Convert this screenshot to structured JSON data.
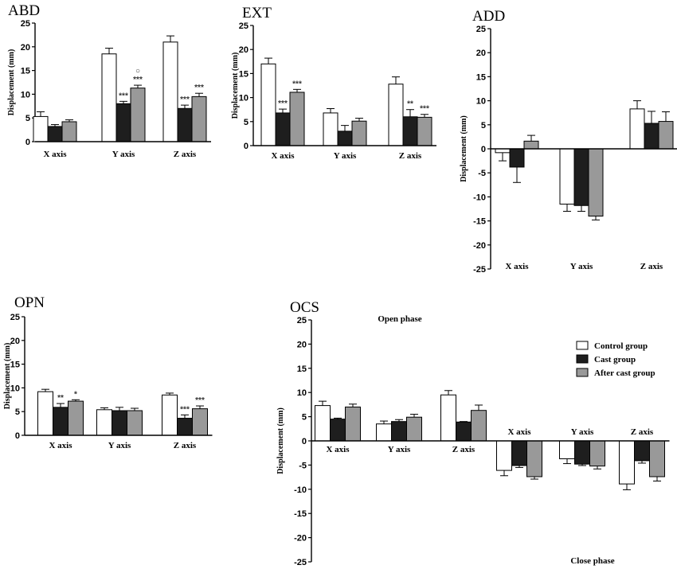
{
  "colors": {
    "control": "#ffffff",
    "cast": "#1e1e1e",
    "after": "#999999",
    "axis": "#000000",
    "sig": "#333333"
  },
  "legend": [
    "Control group",
    "Cast group",
    "After cast group"
  ],
  "chart_data": [
    {
      "id": "ABD",
      "type": "bar",
      "title": "ABD",
      "ylabel": "Displacement (mm)",
      "ylim": [
        0,
        25
      ],
      "ticks": [
        0,
        5,
        10,
        15,
        20,
        25
      ],
      "categories": [
        "X axis",
        "Y axis",
        "Z axis"
      ],
      "series": [
        {
          "name": "Control group",
          "values": [
            5.3,
            18.5,
            21.0
          ],
          "errors": [
            1.0,
            1.2,
            1.3
          ]
        },
        {
          "name": "Cast group",
          "values": [
            3.2,
            8.0,
            7.0
          ],
          "errors": [
            0.4,
            0.5,
            0.7
          ]
        },
        {
          "name": "After cast group",
          "values": [
            4.2,
            11.3,
            9.5
          ],
          "errors": [
            0.4,
            0.6,
            0.7
          ]
        }
      ],
      "sig": [
        [
          "",
          "",
          ""
        ],
        [
          "",
          "***",
          "***"
        ],
        [
          "",
          "○\n***",
          "***"
        ]
      ]
    },
    {
      "id": "EXT",
      "type": "bar",
      "title": "EXT",
      "ylabel": "Displacement (mm)",
      "ylim": [
        0,
        25
      ],
      "ticks": [
        0,
        5,
        10,
        15,
        20,
        25
      ],
      "categories": [
        "X axis",
        "Y axis",
        "Z axis"
      ],
      "series": [
        {
          "name": "Control group",
          "values": [
            17.0,
            6.8,
            12.8
          ],
          "errors": [
            1.2,
            0.9,
            1.5
          ]
        },
        {
          "name": "Cast group",
          "values": [
            6.8,
            3.0,
            6.0
          ],
          "errors": [
            0.8,
            1.2,
            1.5
          ]
        },
        {
          "name": "After cast group",
          "values": [
            11.1,
            5.1,
            5.9
          ],
          "errors": [
            0.6,
            0.6,
            0.6
          ]
        }
      ],
      "sig": [
        [
          "",
          "",
          ""
        ],
        [
          "***",
          "",
          "**"
        ],
        [
          "***",
          "",
          "***"
        ]
      ]
    },
    {
      "id": "ADD",
      "type": "bar",
      "title": "ADD",
      "ylabel": "Displacement (mm)",
      "ylim": [
        -25,
        25
      ],
      "ticks": [
        -25,
        -20,
        -15,
        -10,
        -5,
        0,
        5,
        10,
        15,
        20,
        25
      ],
      "categories": [
        "X axis",
        "Y axis",
        "Z axis"
      ],
      "series": [
        {
          "name": "Control group",
          "values": [
            -0.8,
            -11.5,
            8.3
          ],
          "errors": [
            1.7,
            1.5,
            1.7
          ]
        },
        {
          "name": "Cast group",
          "values": [
            -3.8,
            -11.8,
            5.3
          ],
          "errors": [
            3.2,
            1.2,
            2.5
          ]
        },
        {
          "name": "After cast group",
          "values": [
            1.6,
            -14.0,
            5.7
          ],
          "errors": [
            1.2,
            0.8,
            2.0
          ]
        }
      ],
      "sig": [
        [
          "",
          "",
          ""
        ],
        [
          "",
          "",
          ""
        ],
        [
          "",
          "",
          ""
        ]
      ]
    },
    {
      "id": "OPN",
      "type": "bar",
      "title": "OPN",
      "ylabel": "Displacement (mm)",
      "ylim": [
        0,
        25
      ],
      "ticks": [
        0,
        5,
        10,
        15,
        20,
        25
      ],
      "categories": [
        "X axis",
        "Y axis",
        "Z axis"
      ],
      "series": [
        {
          "name": "Control group",
          "values": [
            9.2,
            5.4,
            8.5
          ],
          "errors": [
            0.5,
            0.4,
            0.4
          ]
        },
        {
          "name": "Cast group",
          "values": [
            5.9,
            5.2,
            3.6
          ],
          "errors": [
            0.8,
            0.7,
            0.7
          ]
        },
        {
          "name": "After cast group",
          "values": [
            7.2,
            5.2,
            5.6
          ],
          "errors": [
            0.3,
            0.5,
            0.6
          ]
        }
      ],
      "sig": [
        [
          "",
          "",
          ""
        ],
        [
          "**",
          "",
          "***"
        ],
        [
          "*",
          "",
          "***"
        ]
      ]
    },
    {
      "id": "OCS",
      "type": "bar",
      "title": "OCS",
      "ylabel": "Displacement (mm)",
      "ylim": [
        -25,
        25
      ],
      "ticks": [
        -25,
        -20,
        -15,
        -10,
        -5,
        0,
        5,
        10,
        15,
        20,
        25
      ],
      "categories": [
        "X axis",
        "Y axis",
        "Z axis",
        "X axis",
        "Y axis",
        "Z axis"
      ],
      "phase_labels": {
        "open": "Open phase",
        "close": "Close phase"
      },
      "series": [
        {
          "name": "Control group",
          "values": [
            7.3,
            3.5,
            9.5,
            -6.1,
            -3.7,
            -8.9
          ],
          "errors": [
            0.9,
            0.6,
            0.9,
            1.1,
            1.0,
            1.2
          ]
        },
        {
          "name": "Cast group",
          "values": [
            4.5,
            4.0,
            3.9,
            -5.1,
            -4.8,
            -4.1
          ],
          "errors": [
            0.2,
            0.4,
            0.1,
            0.4,
            0.3,
            0.5
          ]
        },
        {
          "name": "After cast group",
          "values": [
            7.0,
            4.9,
            6.3,
            -7.4,
            -5.2,
            -7.4
          ],
          "errors": [
            0.6,
            0.6,
            1.1,
            0.5,
            0.6,
            0.9
          ]
        }
      ],
      "sig": [
        [
          "",
          "",
          "",
          "",
          "",
          ""
        ],
        [
          "",
          "",
          "",
          "",
          "",
          ""
        ],
        [
          "",
          "",
          "",
          "",
          "",
          ""
        ]
      ]
    }
  ]
}
